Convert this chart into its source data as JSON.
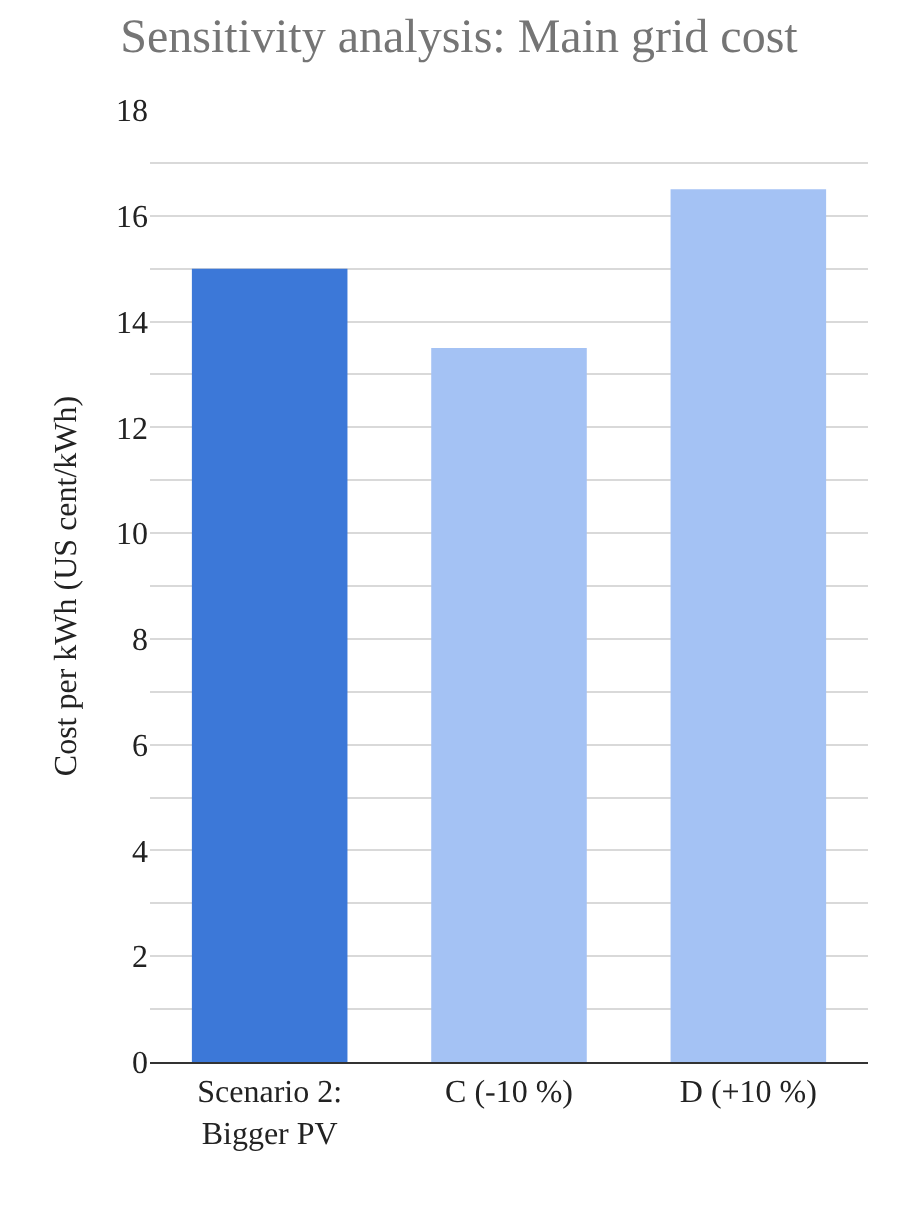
{
  "chart_data": {
    "type": "bar",
    "title": "Sensitivity analysis: Main grid cost",
    "ylabel": "Cost per kWh (US cent/kWh)",
    "categories": [
      "Scenario 2:\nBigger PV",
      "C (-10 %)",
      "D (+10 %)"
    ],
    "values": [
      15,
      13.5,
      16.5
    ],
    "colors": [
      "#3c78d8",
      "#a4c2f4",
      "#a4c2f4"
    ],
    "ylim": [
      0,
      18
    ],
    "yticks": [
      0,
      {
        "value": 1,
        "label": null
      },
      2,
      {
        "value": 3,
        "label": null
      },
      4,
      {
        "value": 5,
        "label": null
      },
      6,
      {
        "value": 7,
        "label": null
      },
      8,
      {
        "value": 9,
        "label": null
      },
      10,
      {
        "value": 11,
        "label": null
      },
      12,
      {
        "value": 13,
        "label": null
      },
      14,
      {
        "value": 15,
        "label": null
      },
      16,
      {
        "value": 17,
        "label": null
      },
      18
    ],
    "grid": "y"
  }
}
